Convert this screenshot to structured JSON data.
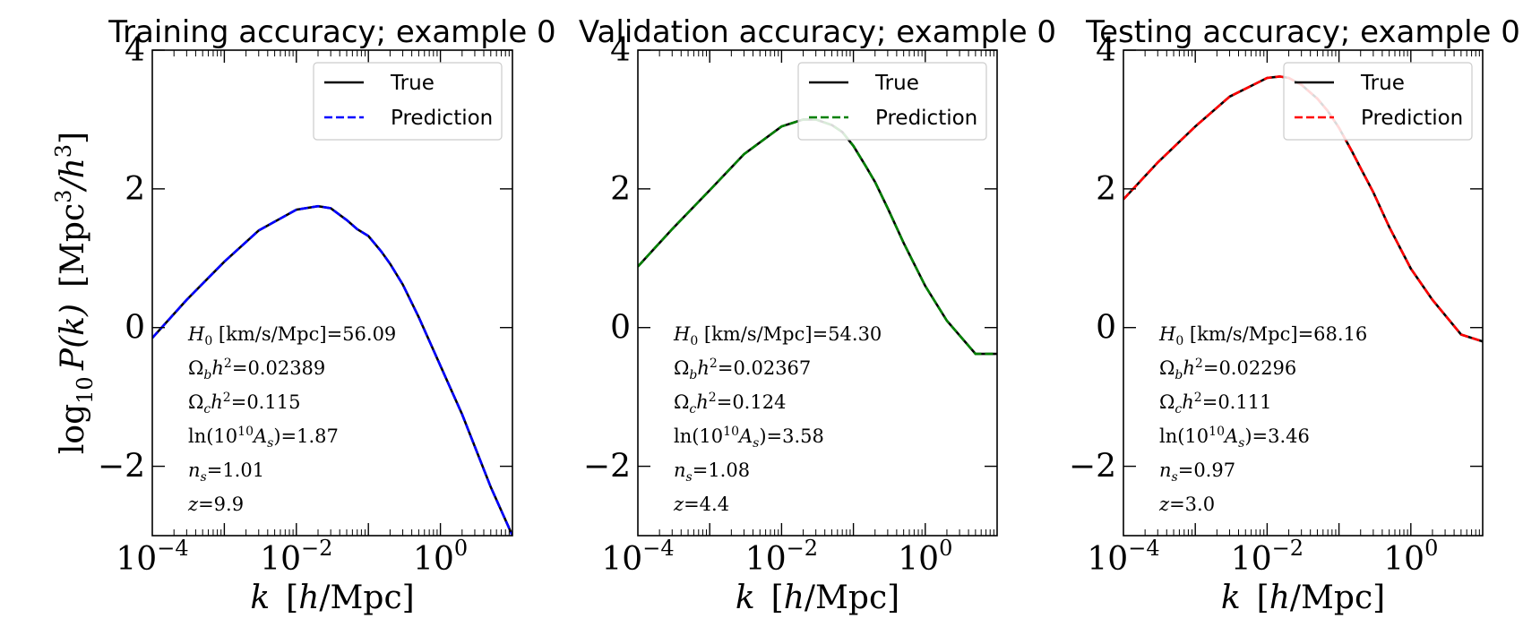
{
  "figure": {
    "ylabel_parts": {
      "lead": "log",
      "sub": "10",
      "mid": "P(k)  [Mpc",
      "sup": "3",
      "tail": "/h",
      "sup2": "3",
      "end": "]"
    }
  },
  "chart_data": [
    {
      "type": "line",
      "title": "Training accuracy; example 0",
      "xlabel": "k  [h/Mpc]",
      "ylabel": "log10 P(k)  [Mpc^3/h^3]",
      "xscale": "log",
      "xlim": [
        0.0001,
        10
      ],
      "ylim": [
        -3,
        4
      ],
      "xticks": [
        {
          "value": 0.0001,
          "base": "10",
          "exp": "−4"
        },
        {
          "value": 0.01,
          "base": "10",
          "exp": "−2"
        },
        {
          "value": 1,
          "base": "10",
          "exp": "0"
        }
      ],
      "yticks": [
        {
          "value": 4,
          "label": "4"
        },
        {
          "value": 2,
          "label": "2"
        },
        {
          "value": 0,
          "label": "0"
        },
        {
          "value": -2,
          "label": "−2"
        }
      ],
      "legend": {
        "position": "top-right",
        "entries": [
          "True",
          "Prediction"
        ]
      },
      "series": [
        {
          "name": "True",
          "color": "#000000",
          "dash": "solid",
          "x": [
            0.0001,
            0.0003,
            0.001,
            0.003,
            0.01,
            0.02,
            0.03,
            0.05,
            0.07,
            0.1,
            0.15,
            0.2,
            0.3,
            0.5,
            1,
            2,
            5,
            10
          ],
          "y": [
            -0.15,
            0.4,
            0.95,
            1.4,
            1.7,
            1.75,
            1.72,
            1.55,
            1.42,
            1.32,
            1.1,
            0.92,
            0.62,
            0.15,
            -0.55,
            -1.25,
            -2.3,
            -3.0
          ]
        },
        {
          "name": "Prediction",
          "color": "#0000ff",
          "dash": "dashed",
          "x": [
            0.0001,
            0.0003,
            0.001,
            0.003,
            0.01,
            0.02,
            0.03,
            0.05,
            0.07,
            0.1,
            0.15,
            0.2,
            0.3,
            0.5,
            1,
            2,
            5,
            10
          ],
          "y": [
            -0.15,
            0.4,
            0.95,
            1.4,
            1.7,
            1.75,
            1.72,
            1.55,
            1.42,
            1.32,
            1.1,
            0.92,
            0.62,
            0.15,
            -0.55,
            -1.25,
            -2.3,
            -3.0
          ]
        }
      ],
      "params": {
        "H0": "56.09",
        "ombh2": "0.02389",
        "omch2": "0.115",
        "lnAs": "1.87",
        "ns": "1.01",
        "z": "9.9"
      }
    },
    {
      "type": "line",
      "title": "Validation accuracy; example 0",
      "xlabel": "k  [h/Mpc]",
      "ylabel": "",
      "xscale": "log",
      "xlim": [
        0.0001,
        10
      ],
      "ylim": [
        -3,
        4
      ],
      "xticks": [
        {
          "value": 0.0001,
          "base": "10",
          "exp": "−4"
        },
        {
          "value": 0.01,
          "base": "10",
          "exp": "−2"
        },
        {
          "value": 1,
          "base": "10",
          "exp": "0"
        }
      ],
      "yticks": [
        {
          "value": 4,
          "label": "4"
        },
        {
          "value": 2,
          "label": "2"
        },
        {
          "value": 0,
          "label": "0"
        },
        {
          "value": -2,
          "label": "−2"
        }
      ],
      "legend": {
        "position": "top-right",
        "entries": [
          "True",
          "Prediction"
        ]
      },
      "series": [
        {
          "name": "True",
          "color": "#000000",
          "dash": "solid",
          "x": [
            0.0001,
            0.0003,
            0.001,
            0.003,
            0.01,
            0.02,
            0.03,
            0.05,
            0.07,
            0.1,
            0.15,
            0.2,
            0.3,
            0.5,
            1,
            2,
            5,
            10
          ],
          "y": [
            0.88,
            1.42,
            1.98,
            2.5,
            2.9,
            3.0,
            3.0,
            2.92,
            2.82,
            2.62,
            2.32,
            2.1,
            1.72,
            1.22,
            0.6,
            0.1,
            -0.38,
            -0.38
          ]
        },
        {
          "name": "Prediction",
          "color": "#008000",
          "dash": "dashed",
          "x": [
            0.0001,
            0.0003,
            0.001,
            0.003,
            0.01,
            0.02,
            0.03,
            0.05,
            0.07,
            0.1,
            0.15,
            0.2,
            0.3,
            0.5,
            1,
            2,
            5,
            10
          ],
          "y": [
            0.88,
            1.42,
            1.98,
            2.5,
            2.9,
            3.0,
            3.0,
            2.92,
            2.82,
            2.62,
            2.32,
            2.1,
            1.72,
            1.22,
            0.6,
            0.1,
            -0.38,
            -0.38
          ]
        }
      ],
      "params": {
        "H0": "54.30",
        "ombh2": "0.02367",
        "omch2": "0.124",
        "lnAs": "3.58",
        "ns": "1.08",
        "z": "4.4"
      }
    },
    {
      "type": "line",
      "title": "Testing accuracy; example 0",
      "xlabel": "k  [h/Mpc]",
      "ylabel": "",
      "xscale": "log",
      "xlim": [
        0.0001,
        10
      ],
      "ylim": [
        -3,
        4
      ],
      "xticks": [
        {
          "value": 0.0001,
          "base": "10",
          "exp": "−4"
        },
        {
          "value": 0.01,
          "base": "10",
          "exp": "−2"
        },
        {
          "value": 1,
          "base": "10",
          "exp": "0"
        }
      ],
      "yticks": [
        {
          "value": 4,
          "label": "4"
        },
        {
          "value": 2,
          "label": "2"
        },
        {
          "value": 0,
          "label": "0"
        },
        {
          "value": -2,
          "label": "−2"
        }
      ],
      "legend": {
        "position": "top-right",
        "entries": [
          "True",
          "Prediction"
        ]
      },
      "series": [
        {
          "name": "True",
          "color": "#000000",
          "dash": "solid",
          "x": [
            0.0001,
            0.0003,
            0.001,
            0.003,
            0.01,
            0.015,
            0.02,
            0.03,
            0.05,
            0.07,
            0.1,
            0.15,
            0.2,
            0.3,
            0.5,
            1,
            2,
            5,
            10
          ],
          "y": [
            1.85,
            2.38,
            2.9,
            3.33,
            3.6,
            3.62,
            3.6,
            3.5,
            3.3,
            3.12,
            2.88,
            2.55,
            2.3,
            1.95,
            1.45,
            0.85,
            0.4,
            -0.1,
            -0.2
          ]
        },
        {
          "name": "Prediction",
          "color": "#ff0000",
          "dash": "dashed",
          "x": [
            0.0001,
            0.0003,
            0.001,
            0.003,
            0.01,
            0.015,
            0.02,
            0.03,
            0.05,
            0.07,
            0.1,
            0.15,
            0.2,
            0.3,
            0.5,
            1,
            2,
            5,
            10
          ],
          "y": [
            1.85,
            2.38,
            2.9,
            3.33,
            3.6,
            3.62,
            3.6,
            3.5,
            3.3,
            3.12,
            2.88,
            2.55,
            2.3,
            1.95,
            1.45,
            0.85,
            0.4,
            -0.1,
            -0.2
          ]
        }
      ],
      "params": {
        "H0": "68.16",
        "ombh2": "0.02296",
        "omch2": "0.111",
        "lnAs": "3.46",
        "ns": "0.97",
        "z": "3.0"
      }
    }
  ]
}
